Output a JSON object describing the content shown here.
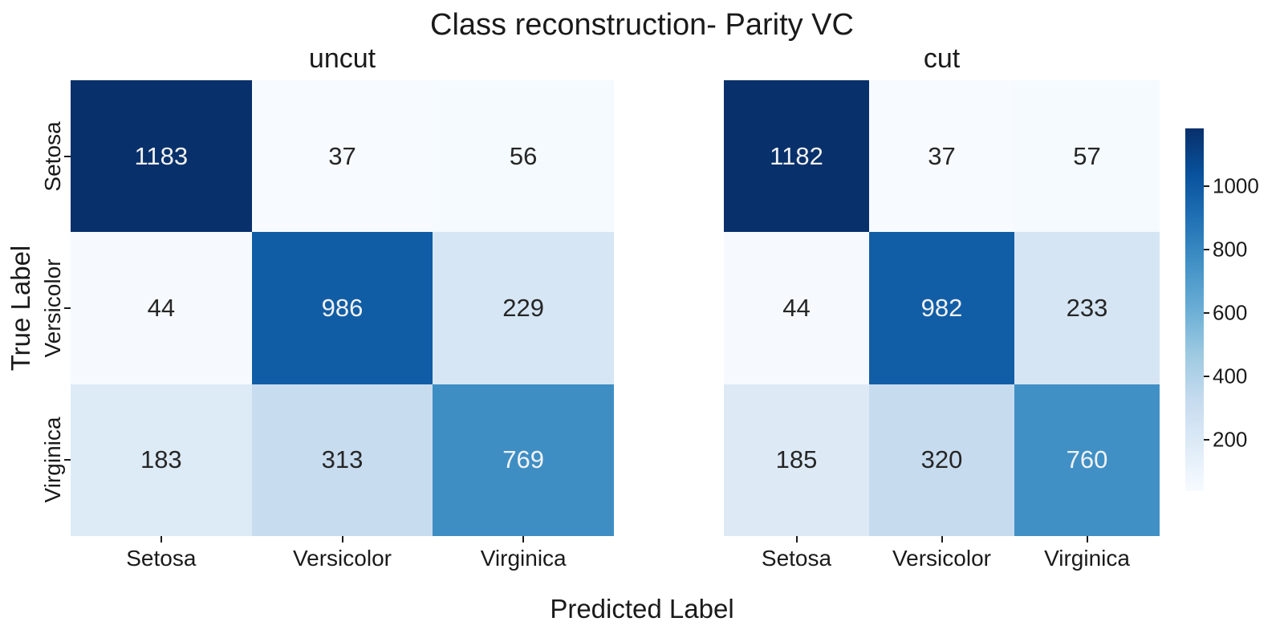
{
  "figure": {
    "background": "#ffffff",
    "text_color": "#1a1a1a"
  },
  "chart_data": {
    "type": "heatmap",
    "title": "Class reconstruction- Parity VC",
    "xlabel": "Predicted Label",
    "ylabel": "True Label",
    "colormap": "Blues",
    "vmin": 37,
    "vmax": 1183,
    "x_categories": [
      "Setosa",
      "Versicolor",
      "Virginica"
    ],
    "y_categories": [
      "Setosa",
      "Versicolor",
      "Virginica"
    ],
    "colorbar_ticks": [
      1000,
      800,
      600,
      400,
      200
    ],
    "subplots": [
      {
        "title": "uncut",
        "values": [
          [
            1183,
            37,
            56
          ],
          [
            44,
            986,
            229
          ],
          [
            183,
            313,
            769
          ]
        ],
        "cell_colors": [
          [
            "#08306b",
            "#f7fbff",
            "#f5fafe"
          ],
          [
            "#f6fafe",
            "#115da5",
            "#d6e6f4"
          ],
          [
            "#ddebf7",
            "#c8dcf0",
            "#3e8ec4"
          ]
        ]
      },
      {
        "title": "cut",
        "values": [
          [
            1182,
            37,
            57
          ],
          [
            44,
            982,
            233
          ],
          [
            185,
            320,
            760
          ]
        ],
        "cell_colors": [
          [
            "#08306b",
            "#f7fbff",
            "#f5fafe"
          ],
          [
            "#f6fafe",
            "#125ea6",
            "#d5e5f4"
          ],
          [
            "#ddeaf6",
            "#c7dbef",
            "#4090c5"
          ]
        ]
      }
    ],
    "colorbar_gradient_stops": [
      "#08306b",
      "#08519c",
      "#2171b5",
      "#4292c6",
      "#6baed6",
      "#9ecae1",
      "#c6dbef",
      "#deebf7",
      "#f7fbff"
    ],
    "annotation_color_dark": "#262626",
    "annotation_color_light": "#f2f2f2"
  }
}
